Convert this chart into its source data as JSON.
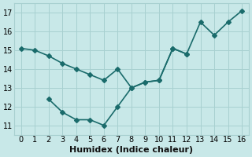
{
  "line1_x": [
    0,
    1,
    2,
    3,
    4,
    5,
    6,
    7,
    8,
    9,
    10,
    11,
    12
  ],
  "line1_y": [
    15.1,
    15.0,
    14.7,
    14.3,
    14.0,
    13.7,
    13.4,
    14.0,
    13.0,
    13.3,
    13.4,
    15.1,
    14.8
  ],
  "line2_x": [
    2,
    3,
    4,
    5,
    6,
    7,
    8,
    9,
    10,
    11,
    12,
    13,
    14,
    15,
    16
  ],
  "line2_y": [
    12.4,
    11.7,
    11.3,
    11.3,
    11.0,
    12.0,
    13.0,
    13.3,
    13.4,
    15.1,
    14.8,
    16.5,
    15.8,
    16.5,
    17.1
  ],
  "color": "#1a6b6b",
  "bg_color": "#c8e8e8",
  "grid_color": "#a8d0d0",
  "xlabel": "Humidex (Indice chaleur)",
  "xlim": [
    -0.5,
    16.5
  ],
  "ylim": [
    10.5,
    17.5
  ],
  "yticks": [
    11,
    12,
    13,
    14,
    15,
    16,
    17
  ],
  "xticks": [
    0,
    1,
    2,
    3,
    4,
    5,
    6,
    7,
    8,
    9,
    10,
    11,
    12,
    13,
    14,
    15,
    16
  ],
  "marker": "D",
  "markersize": 3,
  "linewidth": 1.2,
  "xlabel_fontsize": 8,
  "tick_fontsize": 7
}
